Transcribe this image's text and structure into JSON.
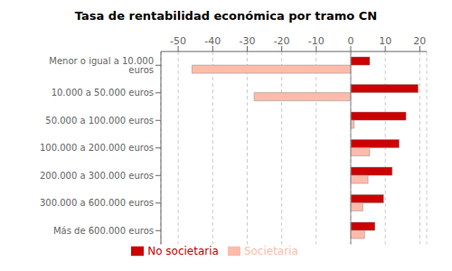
{
  "chart_data": {
    "type": "bar",
    "orientation": "horizontal",
    "title": "Tasa de rentabilidad económica por tramo CN",
    "categories": [
      "Menor o igual a 10.000 euros",
      "10.000 a 50.000 euros",
      "50.000 a 100.000 euros",
      "100.000 a 200.000 euros",
      "200.000 a 300.000 euros",
      "300.000 a 600.000 euros",
      "Más de 600.000 euros"
    ],
    "series": [
      {
        "name": "No societaria",
        "color": "#cc0000",
        "values": [
          5.5,
          19.5,
          16.0,
          14.0,
          12.0,
          9.5,
          7.0
        ]
      },
      {
        "name": "Societaria",
        "color": "#ffbbaa",
        "values": [
          -46.0,
          -28.0,
          1.0,
          5.5,
          5.0,
          3.5,
          4.0
        ]
      }
    ],
    "xlim": [
      -55,
      22
    ],
    "xticks": [
      -50,
      -40,
      -30,
      -20,
      -10,
      0,
      10,
      20
    ],
    "grid": true,
    "legend": "bottom"
  }
}
